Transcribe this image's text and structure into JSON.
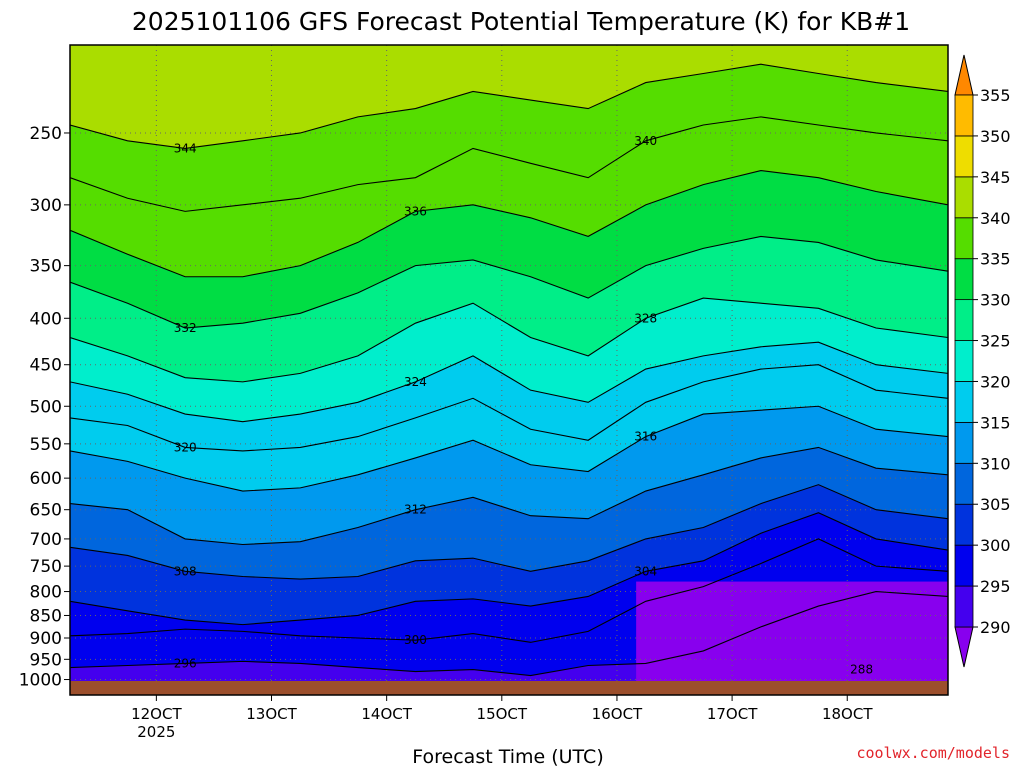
{
  "title": "2025101106 GFS Forecast Potential Temperature (K) for KB#1",
  "xlabel": "Forecast Time (UTC)",
  "credit": "coolwx.com/models",
  "colors": {
    "ground": "#9c4f2c",
    "contour": "#000000",
    "grid": "#666666",
    "credit": "#e2242b"
  },
  "chart_data": {
    "type": "heatmap",
    "title": "2025101106 GFS Forecast Potential Temperature (K) for KB#1",
    "xlabel": "Forecast Time (UTC)",
    "ylabel": "",
    "x_unit": "hours since 2025-10-11 06 UTC",
    "xlim": [
      0,
      183
    ],
    "y_scale": "log",
    "ylim": [
      1000,
      200
    ],
    "x_ticks": [
      {
        "value": 18,
        "label": "12OCT",
        "sublabel": "2025"
      },
      {
        "value": 42,
        "label": "13OCT",
        "sublabel": ""
      },
      {
        "value": 66,
        "label": "14OCT",
        "sublabel": ""
      },
      {
        "value": 90,
        "label": "15OCT",
        "sublabel": ""
      },
      {
        "value": 114,
        "label": "16OCT",
        "sublabel": ""
      },
      {
        "value": 138,
        "label": "17OCT",
        "sublabel": ""
      },
      {
        "value": 162,
        "label": "18OCT",
        "sublabel": ""
      }
    ],
    "y_ticks": [
      250,
      300,
      350,
      400,
      450,
      500,
      550,
      600,
      650,
      700,
      750,
      800,
      850,
      900,
      950,
      1000
    ],
    "grid": true,
    "colorbar": {
      "levels": [
        290,
        295,
        300,
        305,
        310,
        315,
        320,
        325,
        330,
        335,
        340,
        345,
        350,
        355
      ],
      "colors": [
        "#8800ee",
        "#4400ee",
        "#0000ee",
        "#0033dd",
        "#0066dd",
        "#0099ee",
        "#00ccee",
        "#00eecc",
        "#00ee88",
        "#00dd44",
        "#55dd00",
        "#aadd00",
        "#eedd00",
        "#ffbb00",
        "#ff8800"
      ],
      "extend": "both",
      "placement": "right"
    },
    "x_series": [
      0,
      12,
      24,
      36,
      48,
      60,
      72,
      84,
      96,
      108,
      120,
      132,
      144,
      156,
      168,
      183
    ],
    "isentropes": [
      {
        "theta": 296,
        "label": "296",
        "p": [
          970,
          965,
          960,
          955,
          960,
          970,
          980,
          975,
          990,
          965,
          960,
          930,
          875,
          830,
          800,
          810
        ]
      },
      {
        "theta": 300,
        "label": "300",
        "p": [
          895,
          890,
          880,
          885,
          895,
          900,
          905,
          890,
          910,
          885,
          820,
          790,
          745,
          700,
          750,
          760
        ]
      },
      {
        "theta": 304,
        "label": "304",
        "p": [
          820,
          840,
          860,
          870,
          860,
          850,
          820,
          815,
          830,
          810,
          760,
          740,
          690,
          655,
          700,
          720
        ]
      },
      {
        "theta": 308,
        "label": "308",
        "p": [
          715,
          730,
          760,
          770,
          775,
          770,
          740,
          735,
          760,
          740,
          700,
          680,
          640,
          610,
          650,
          665
        ]
      },
      {
        "theta": 312,
        "label": "312",
        "p": [
          640,
          650,
          700,
          710,
          705,
          680,
          650,
          630,
          660,
          665,
          620,
          595,
          570,
          555,
          585,
          595
        ]
      },
      {
        "theta": 316,
        "label": "316",
        "p": [
          560,
          575,
          600,
          620,
          615,
          595,
          570,
          545,
          580,
          590,
          540,
          510,
          505,
          500,
          530,
          540
        ]
      },
      {
        "theta": 320,
        "label": "320",
        "p": [
          515,
          525,
          555,
          560,
          555,
          540,
          515,
          490,
          530,
          545,
          495,
          470,
          455,
          450,
          480,
          490
        ]
      },
      {
        "theta": 324,
        "label": "324",
        "p": [
          470,
          485,
          510,
          520,
          510,
          495,
          470,
          440,
          480,
          495,
          455,
          440,
          430,
          425,
          450,
          460
        ]
      },
      {
        "theta": 328,
        "label": "328",
        "p": [
          420,
          440,
          465,
          470,
          460,
          440,
          405,
          385,
          420,
          440,
          400,
          380,
          385,
          390,
          410,
          420
        ]
      },
      {
        "theta": 332,
        "label": "332",
        "p": [
          365,
          385,
          410,
          405,
          395,
          375,
          350,
          345,
          360,
          380,
          350,
          335,
          325,
          330,
          345,
          355
        ]
      },
      {
        "theta": 336,
        "label": "336",
        "p": [
          320,
          340,
          360,
          360,
          350,
          330,
          305,
          300,
          310,
          325,
          300,
          285,
          275,
          280,
          290,
          300
        ]
      },
      {
        "theta": 340,
        "label": "340",
        "p": [
          280,
          295,
          305,
          300,
          295,
          285,
          280,
          260,
          270,
          280,
          255,
          245,
          240,
          245,
          250,
          255
        ]
      },
      {
        "theta": 344,
        "label": "344",
        "p": [
          245,
          255,
          260,
          255,
          250,
          240,
          235,
          225,
          230,
          235,
          220,
          215,
          210,
          215,
          220,
          225
        ]
      }
    ],
    "cold_pool": {
      "theta": 288,
      "label": "288",
      "x": [
        118,
        183
      ],
      "p_top": 780
    }
  }
}
